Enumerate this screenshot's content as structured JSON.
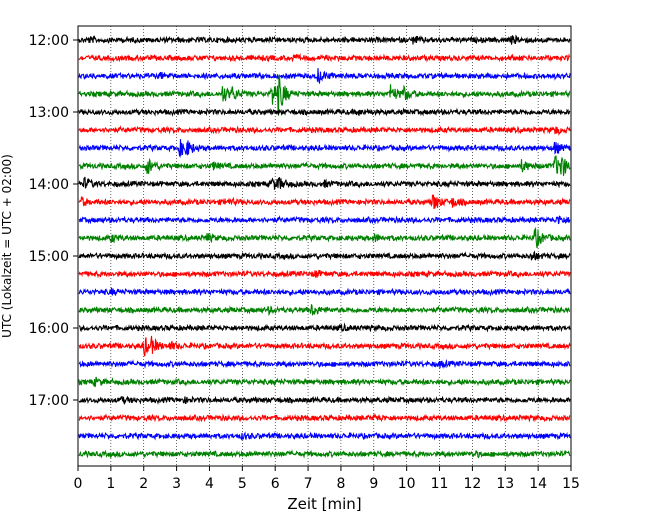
{
  "chart_data": {
    "type": "line",
    "title": "",
    "xlabel": "Zeit  [min]",
    "ylabel": "UTC (Lokalzeit = UTC + 02:00)",
    "xlim": [
      0,
      15
    ],
    "x_ticks": [
      0,
      1,
      2,
      3,
      4,
      5,
      6,
      7,
      8,
      9,
      10,
      11,
      12,
      13,
      14,
      15
    ],
    "y_tick_labels": [
      "12:00",
      "13:00",
      "14:00",
      "15:00",
      "16:00",
      "17:00"
    ],
    "grid": "vertical dotted",
    "trace_colors": [
      "#000000",
      "#ff0000",
      "#0000ff",
      "#008000"
    ],
    "rows": [
      {
        "start": "12:00",
        "color": "#000000",
        "events": [
          {
            "t": 13.2,
            "a": 0.3
          },
          {
            "t": 10.2,
            "a": 0.25
          },
          {
            "t": 0.3,
            "a": 0.2
          }
        ]
      },
      {
        "start": "12:15",
        "color": "#ff0000",
        "events": [
          {
            "t": 6.5,
            "a": 0.2
          }
        ]
      },
      {
        "start": "12:30",
        "color": "#0000ff",
        "events": [
          {
            "t": 7.3,
            "a": 0.6
          },
          {
            "t": 2.5,
            "a": 0.2
          }
        ]
      },
      {
        "start": "12:45",
        "color": "#008000",
        "events": [
          {
            "t": 4.4,
            "a": 0.8
          },
          {
            "t": 4.7,
            "a": 0.5
          },
          {
            "t": 5.9,
            "a": 1.2
          },
          {
            "t": 6.1,
            "a": 1.5
          },
          {
            "t": 9.5,
            "a": 0.8
          },
          {
            "t": 9.9,
            "a": 0.6
          }
        ]
      },
      {
        "start": "13:00",
        "color": "#000000",
        "events": [
          {
            "t": 8.5,
            "a": 0.2
          }
        ]
      },
      {
        "start": "13:15",
        "color": "#ff0000",
        "events": [
          {
            "t": 14.5,
            "a": 0.3
          }
        ]
      },
      {
        "start": "13:30",
        "color": "#0000ff",
        "events": [
          {
            "t": 3.1,
            "a": 0.7
          },
          {
            "t": 3.3,
            "a": 0.5
          },
          {
            "t": 14.5,
            "a": 0.5
          }
        ]
      },
      {
        "start": "13:45",
        "color": "#008000",
        "events": [
          {
            "t": 2.1,
            "a": 0.8
          },
          {
            "t": 4.1,
            "a": 0.3
          },
          {
            "t": 13.5,
            "a": 0.5
          },
          {
            "t": 14.5,
            "a": 1.0
          },
          {
            "t": 14.7,
            "a": 0.8
          }
        ]
      },
      {
        "start": "14:00",
        "color": "#000000",
        "events": [
          {
            "t": 0.2,
            "a": 0.5
          },
          {
            "t": 5.9,
            "a": 0.5
          },
          {
            "t": 6.1,
            "a": 0.4
          },
          {
            "t": 7.5,
            "a": 0.2
          }
        ]
      },
      {
        "start": "14:15",
        "color": "#ff0000",
        "events": [
          {
            "t": 0.1,
            "a": 0.3
          },
          {
            "t": 4.5,
            "a": 0.3
          },
          {
            "t": 10.8,
            "a": 0.8
          },
          {
            "t": 11.4,
            "a": 0.4
          }
        ]
      },
      {
        "start": "14:30",
        "color": "#0000ff",
        "events": [
          {
            "t": 14.6,
            "a": 0.4
          }
        ]
      },
      {
        "start": "14:45",
        "color": "#008000",
        "events": [
          {
            "t": 1.0,
            "a": 0.3
          },
          {
            "t": 3.9,
            "a": 0.3
          },
          {
            "t": 9.0,
            "a": 0.3
          },
          {
            "t": 13.9,
            "a": 1.0
          }
        ]
      },
      {
        "start": "15:00",
        "color": "#000000",
        "events": [
          {
            "t": 13.8,
            "a": 0.4
          }
        ]
      },
      {
        "start": "15:15",
        "color": "#ff0000",
        "events": [
          {
            "t": 7.2,
            "a": 0.3
          }
        ]
      },
      {
        "start": "15:30",
        "color": "#0000ff",
        "events": [
          {
            "t": 1.0,
            "a": 0.2
          }
        ]
      },
      {
        "start": "15:45",
        "color": "#008000",
        "events": [
          {
            "t": 7.1,
            "a": 0.5
          },
          {
            "t": 5.8,
            "a": 0.2
          }
        ]
      },
      {
        "start": "16:00",
        "color": "#000000",
        "events": [
          {
            "t": 8.0,
            "a": 0.2
          }
        ]
      },
      {
        "start": "16:15",
        "color": "#ff0000",
        "events": [
          {
            "t": 2.0,
            "a": 0.9
          },
          {
            "t": 2.2,
            "a": 0.6
          },
          {
            "t": 2.8,
            "a": 0.3
          }
        ]
      },
      {
        "start": "16:30",
        "color": "#0000ff",
        "events": [
          {
            "t": 11.0,
            "a": 0.2
          }
        ]
      },
      {
        "start": "16:45",
        "color": "#008000",
        "events": [
          {
            "t": 0.5,
            "a": 0.3
          }
        ]
      },
      {
        "start": "17:00",
        "color": "#000000",
        "events": [
          {
            "t": 1.3,
            "a": 0.2
          },
          {
            "t": 3.2,
            "a": 0.2
          }
        ]
      },
      {
        "start": "17:15",
        "color": "#ff0000",
        "events": [
          {
            "t": 9.0,
            "a": 0.2
          }
        ]
      },
      {
        "start": "17:30",
        "color": "#0000ff",
        "events": [
          {
            "t": 5.0,
            "a": 0.2
          }
        ]
      },
      {
        "start": "17:45",
        "color": "#008000",
        "events": [
          {
            "t": 12.0,
            "a": 0.2
          }
        ]
      }
    ]
  }
}
